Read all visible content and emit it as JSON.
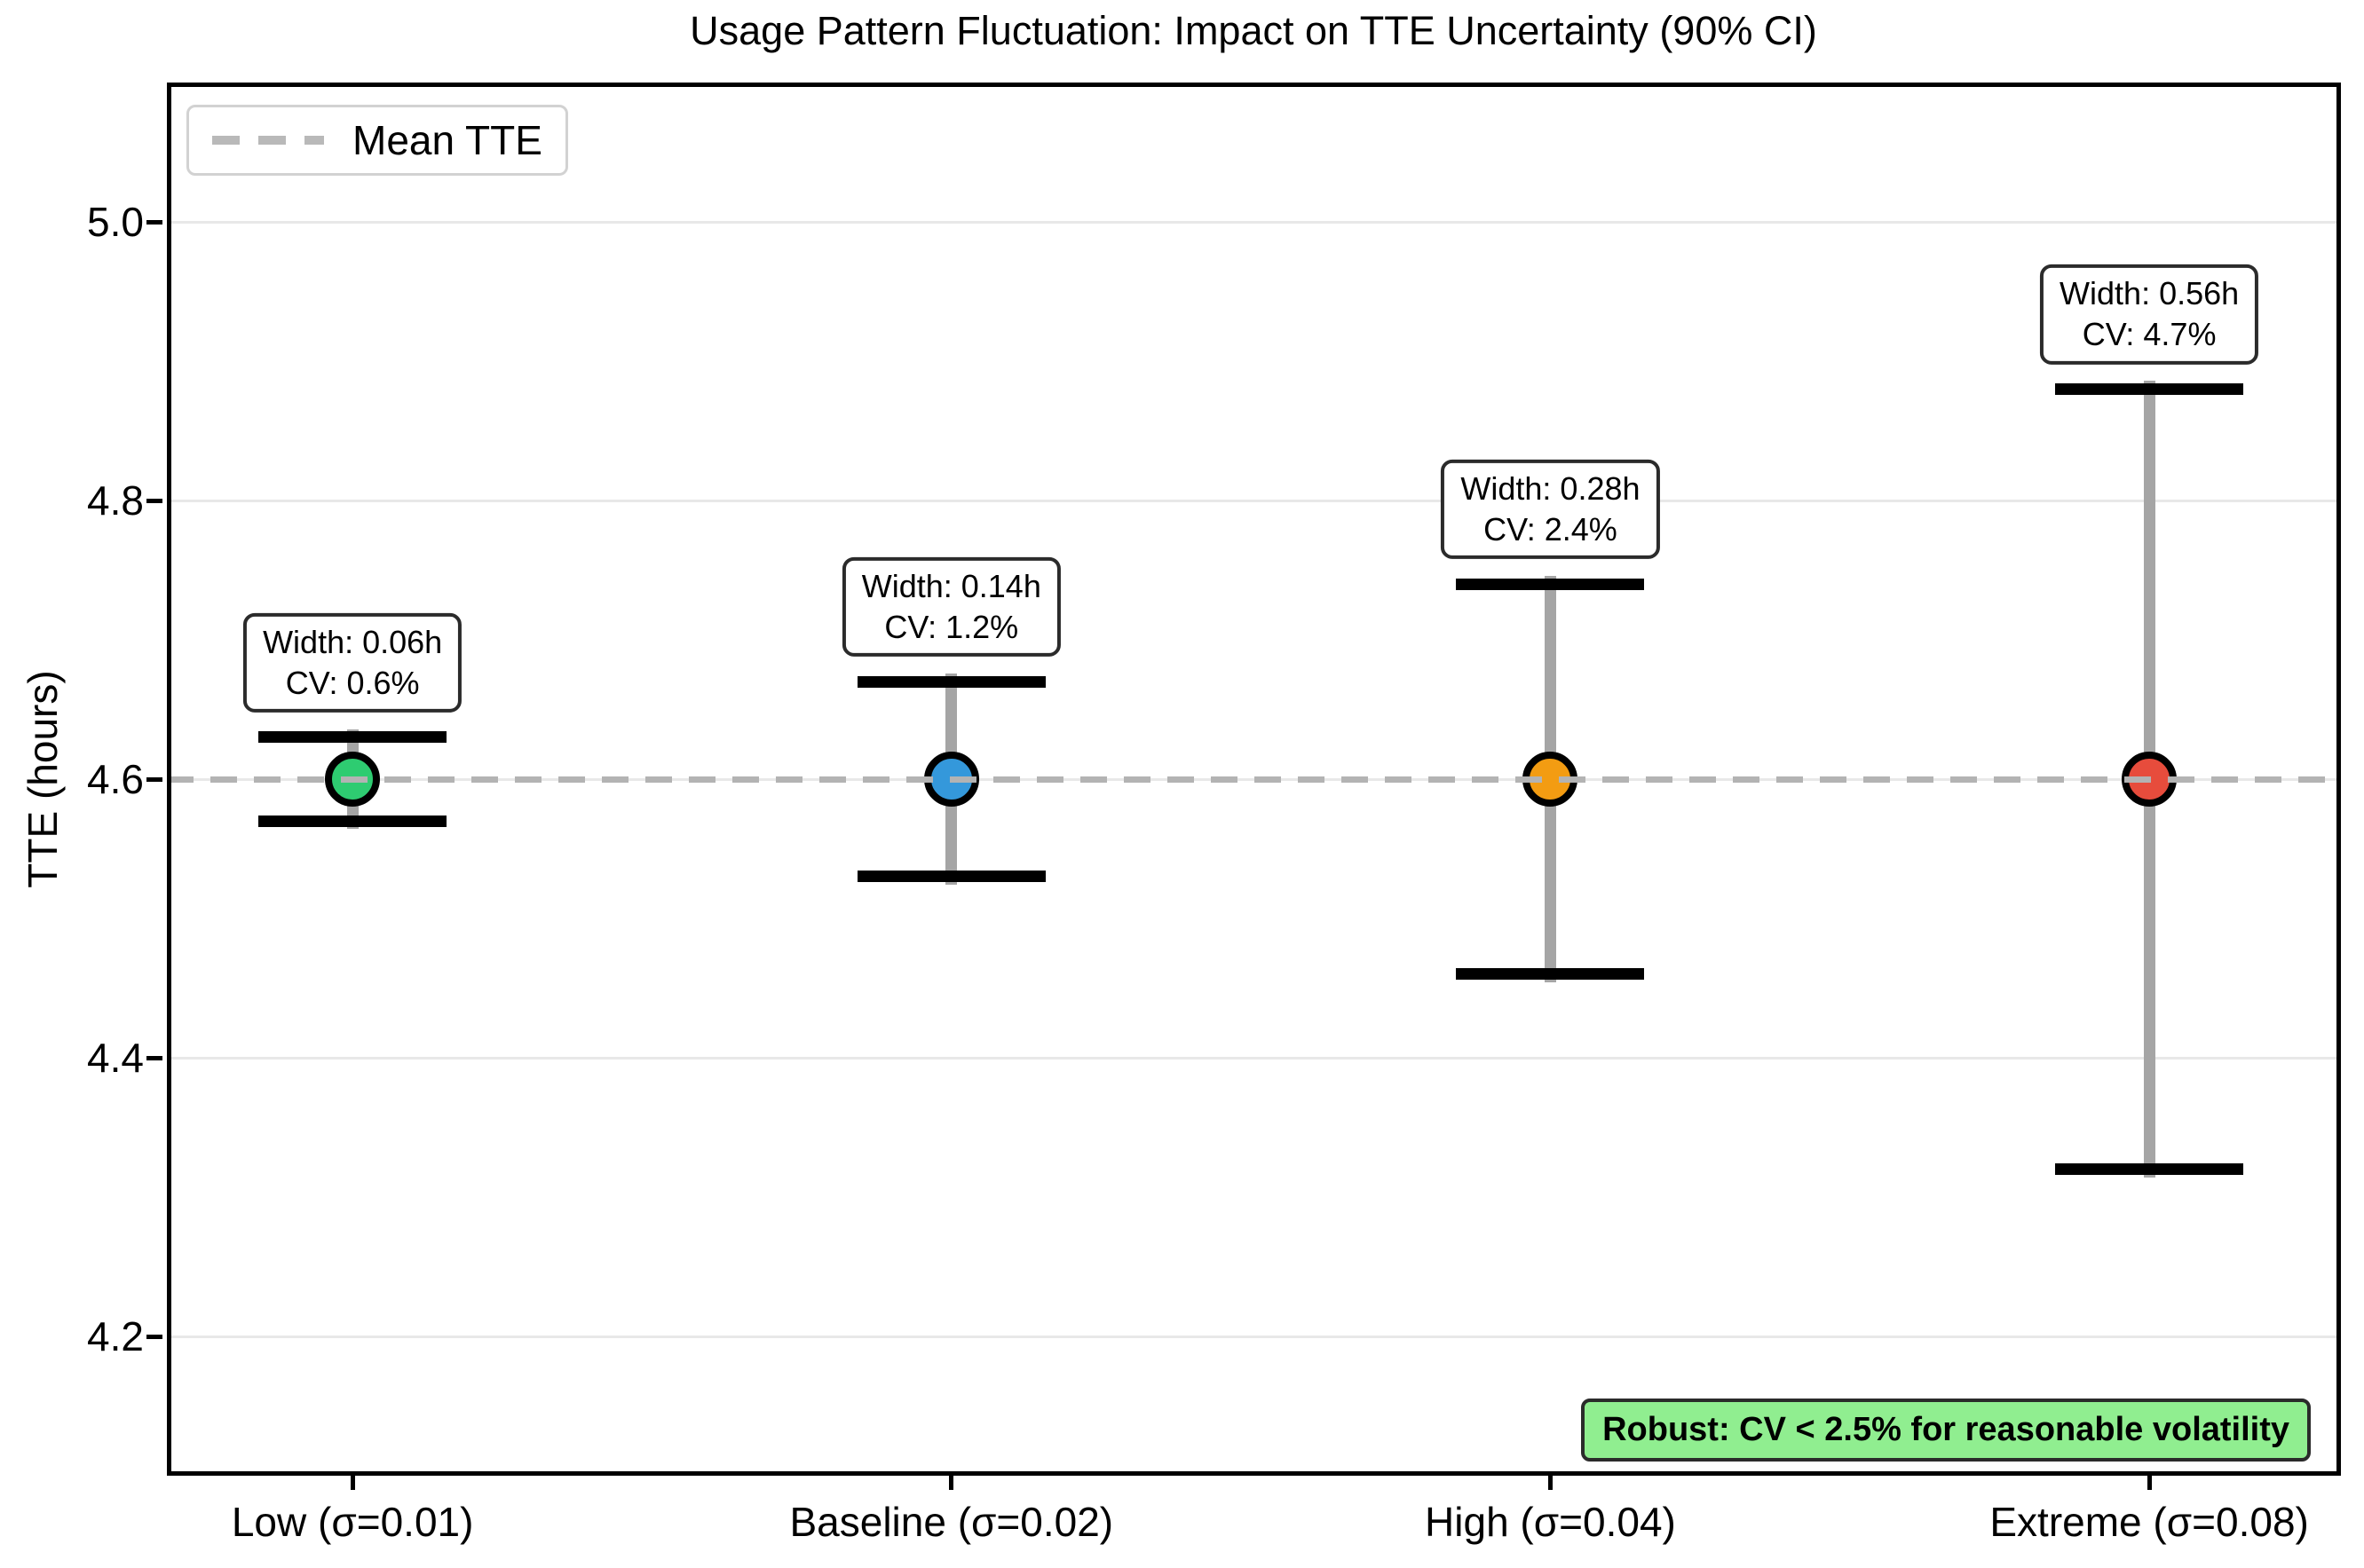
{
  "chart_data": {
    "type": "scatter",
    "subtype": "errorbar",
    "title": "Usage Pattern Fluctuation: Impact on TTE Uncertainty (90% CI)",
    "xlabel": "",
    "ylabel": "TTE (hours)",
    "ylim": [
      4.1,
      5.1
    ],
    "xlim": [
      -0.31,
      3.32
    ],
    "yticks": [
      4.2,
      4.4,
      4.6,
      4.8,
      5.0
    ],
    "grid": "horizontal",
    "mean_tte": 4.6,
    "legend": {
      "position": "upper left",
      "entries": [
        "Mean TTE"
      ]
    },
    "categories": [
      "Low (σ=0.01)",
      "Baseline (σ=0.02)",
      "High (σ=0.04)",
      "Extreme (σ=0.08)"
    ],
    "points": [
      {
        "id": "low",
        "category": "Low (σ=0.01)",
        "sigma": 0.01,
        "mean_tte": 4.6,
        "ci90_low": 4.57,
        "ci90_high": 4.63,
        "ci_width_h": 0.06,
        "cv_pct": 0.6,
        "color": "#2ecc71",
        "annotation_line1": "Width: 0.06h",
        "annotation_line2": "CV: 0.6%"
      },
      {
        "id": "baseline",
        "category": "Baseline (σ=0.02)",
        "sigma": 0.02,
        "mean_tte": 4.6,
        "ci90_low": 4.53,
        "ci90_high": 4.67,
        "ci_width_h": 0.14,
        "cv_pct": 1.2,
        "color": "#3498db",
        "annotation_line1": "Width: 0.14h",
        "annotation_line2": "CV: 1.2%"
      },
      {
        "id": "high",
        "category": "High (σ=0.04)",
        "sigma": 0.04,
        "mean_tte": 4.6,
        "ci90_low": 4.46,
        "ci90_high": 4.74,
        "ci_width_h": 0.28,
        "cv_pct": 2.4,
        "color": "#f39c12",
        "annotation_line1": "Width: 0.28h",
        "annotation_line2": "CV: 2.4%"
      },
      {
        "id": "extreme",
        "category": "Extreme (σ=0.08)",
        "sigma": 0.08,
        "mean_tte": 4.6,
        "ci90_low": 4.32,
        "ci90_high": 4.88,
        "ci_width_h": 0.56,
        "cv_pct": 4.7,
        "color": "#e74c3c",
        "annotation_line1": "Width: 0.56h",
        "annotation_line2": "CV: 4.7%"
      }
    ],
    "annotation_box": {
      "text": "Robust: CV < 2.5% for reasonable volatility",
      "bg": "#90EE90"
    },
    "colors": {
      "mean_line": "#b3b3b3",
      "error_line": "#a5a5a5",
      "cap": "#000000",
      "grid": "#e8e8e8"
    }
  }
}
